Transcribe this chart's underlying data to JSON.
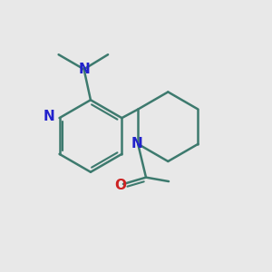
{
  "bg_color": "#e8e8e8",
  "bond_color": "#3d7a6e",
  "N_color": "#2222cc",
  "O_color": "#cc2222",
  "bond_width": 1.8,
  "font_size": 10,
  "figsize": [
    3.0,
    3.0
  ],
  "dpi": 100,
  "xlim": [
    0,
    10
  ],
  "ylim": [
    0,
    10
  ]
}
